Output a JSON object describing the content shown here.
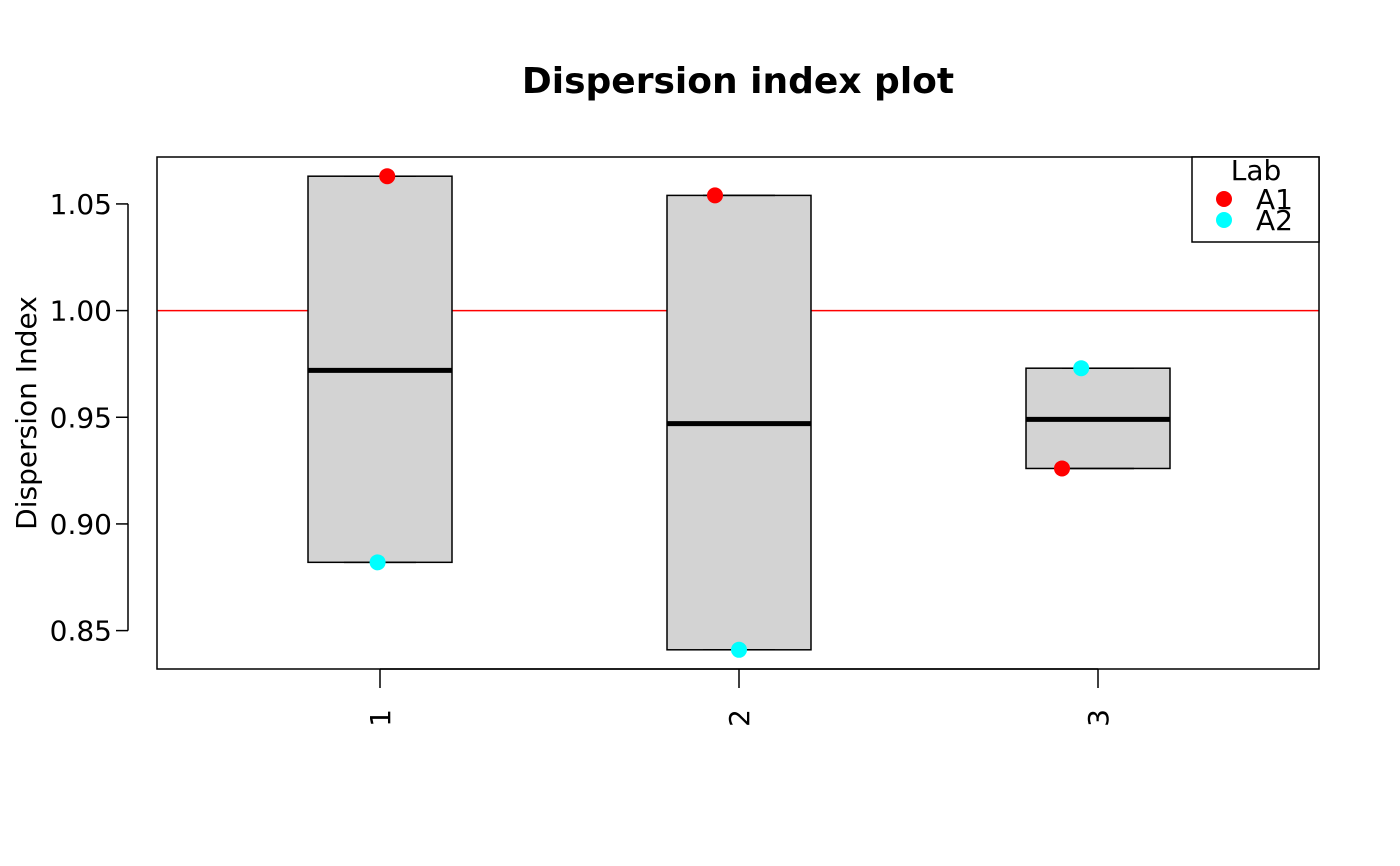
{
  "chart_data": {
    "type": "boxplot",
    "title": "Dispersion index plot",
    "xlabel": "",
    "ylabel": "Dispersion Index",
    "categories": [
      "1",
      "2",
      "3"
    ],
    "y_ticks": [
      "0.85",
      "0.90",
      "0.95",
      "1.00",
      "1.05"
    ],
    "ylim": [
      0.832,
      1.072
    ],
    "boxes": [
      {
        "category": "1",
        "min": 0.882,
        "median": 0.972,
        "max": 1.063
      },
      {
        "category": "2",
        "min": 0.841,
        "median": 0.947,
        "max": 1.054
      },
      {
        "category": "3",
        "min": 0.926,
        "median": 0.949,
        "max": 0.973
      }
    ],
    "series": [
      {
        "name": "A1",
        "color": "#ff0000",
        "values": [
          1.063,
          1.054,
          0.926
        ],
        "jitter": [
          0.03,
          -0.1,
          -0.15
        ]
      },
      {
        "name": "A2",
        "color": "#00ffff",
        "values": [
          0.882,
          0.841,
          0.973
        ],
        "jitter": [
          -0.01,
          0.0,
          -0.07
        ]
      }
    ],
    "reference_line": {
      "y": 1.0,
      "color": "#ff0000"
    },
    "legend": {
      "title": "Lab",
      "position": "top-right"
    },
    "box_fill": "#d3d3d3"
  }
}
